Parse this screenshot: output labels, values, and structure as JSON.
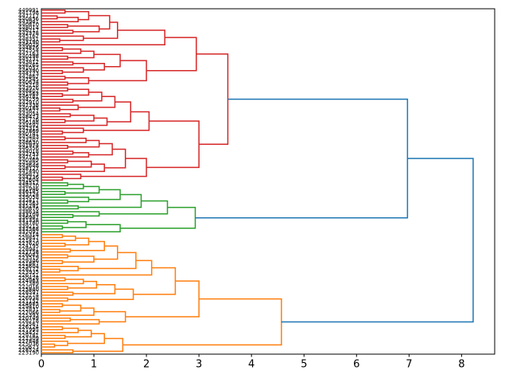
{
  "figure": {
    "background": "#ffffff",
    "frame_color": "#000000"
  },
  "chart_data": {
    "type": "dendrogram",
    "orientation": "horizontal-root-right",
    "title": "",
    "xlabel": "",
    "ylabel": "",
    "grid": false,
    "legend": null,
    "x_axis": {
      "min": 0,
      "max": 8.63,
      "ticks": [
        "0",
        "1",
        "2",
        "3",
        "4",
        "5",
        "6",
        "7",
        "8"
      ]
    },
    "link_colors": {
      "above_threshold": "#1f77b4",
      "cluster_top": "#d62728",
      "cluster_middle": "#2ca02c",
      "cluster_bottom": "#ff7f0e"
    },
    "clusters": [
      {
        "name": "cluster-top-red",
        "color": "#d62728",
        "leaf_count": 60,
        "root_height": 3.55
      },
      {
        "name": "cluster-middle-green",
        "color": "#2ca02c",
        "leaf_count": 18,
        "root_height": 2.93
      },
      {
        "name": "cluster-bottom-orange",
        "color": "#ff7f0e",
        "leaf_count": 42,
        "root_height": 4.57
      }
    ],
    "root_merges": [
      {
        "joins": "red+green",
        "height": 6.97,
        "color": "#1f77b4"
      },
      {
        "joins": "(red+green)+orange",
        "height": 8.22,
        "color": "#1f77b4"
      }
    ],
    "leaf_labels": [
      "449991",
      "441798",
      "447717",
      "440856",
      "443941",
      "440810",
      "448014",
      "446217",
      "442378",
      "445162",
      "448351",
      "443190",
      "446029",
      "444876",
      "442554",
      "447163",
      "440298",
      "445731",
      "443812",
      "448265",
      "441057",
      "446390",
      "444123",
      "442867",
      "447545",
      "440634",
      "445218",
      "443976",
      "448402",
      "441563",
      "446781",
      "444259",
      "442910",
      "447338",
      "440185",
      "445627",
      "443054",
      "448473",
      "441726",
      "446148",
      "444592",
      "442315",
      "447869",
      "440741",
      "445483",
      "443207",
      "448630",
      "441974",
      "446356",
      "444018",
      "442753",
      "447521",
      "440369",
      "445895",
      "443648",
      "448127",
      "441490",
      "446873",
      "444236",
      "442604",
      "334512",
      "338270",
      "331946",
      "336185",
      "333724",
      "339058",
      "332417",
      "337563",
      "335291",
      "330876",
      "338634",
      "333109",
      "336947",
      "331358",
      "334780",
      "339215",
      "332568",
      "337092",
      "226314",
      "229857",
      "221473",
      "227620",
      "224195",
      "228941",
      "222758",
      "226083",
      "223519",
      "229346",
      "221867",
      "225604",
      "228172",
      "223935",
      "226751",
      "220428",
      "224963",
      "227389",
      "222016",
      "225840",
      "228597",
      "223274",
      "226938",
      "221152",
      "224685",
      "229410",
      "222831",
      "227066",
      "225393",
      "220749",
      "228218",
      "223567",
      "226124",
      "221995",
      "224452",
      "229781",
      "222309",
      "227848",
      "225036",
      "220673",
      "228524",
      "223190"
    ],
    "tree": {
      "h": 8.22,
      "color": "#1f77b4",
      "children": [
        {
          "h": 6.97,
          "color": "#1f77b4",
          "children": [
            {
              "h": 3.55,
              "color": "#d62728",
              "children": [
                [
                  2.95,
                  [
                    2.35,
                    [
                      1.45,
                      [
                        1.3,
                        [
                          0.9,
                          [
                            0.45,
                            0,
                            1
                          ],
                          [
                            0.7,
                            [
                              0.3,
                              2,
                              3
                            ],
                            4
                          ]
                        ],
                        [
                          1.1,
                          [
                            0.5,
                            5,
                            6
                          ],
                          [
                            0.6,
                            7,
                            8
                          ]
                        ]
                      ],
                      [
                        0.8,
                        9,
                        [
                          0.35,
                          10,
                          11
                        ]
                      ]
                    ],
                    12
                  ],
                  [
                    2.0,
                    [
                      1.5,
                      [
                        1.0,
                        [
                          0.75,
                          [
                            0.4,
                            13,
                            14
                          ],
                          15
                        ],
                        [
                          0.5,
                          16,
                          17
                        ]
                      ],
                      [
                        1.2,
                        [
                          0.6,
                          18,
                          19
                        ],
                        [
                          0.8,
                          20,
                          [
                            0.4,
                            21,
                            22
                          ]
                        ]
                      ]
                    ],
                    [
                      0.9,
                      [
                        0.45,
                        23,
                        24
                      ],
                      [
                        0.5,
                        25,
                        26
                      ]
                    ]
                  ]
                ],
                [
                  3.0,
                  [
                    2.05,
                    [
                      1.7,
                      [
                        1.4,
                        [
                          1.15,
                          [
                            0.9,
                            [
                              0.5,
                              27,
                              28
                            ],
                            [
                              0.4,
                              29,
                              30
                            ]
                          ],
                          [
                            0.6,
                            31,
                            32
                          ]
                        ],
                        [
                          0.7,
                          33,
                          [
                            0.35,
                            34,
                            35
                          ]
                        ]
                      ],
                      [
                        1.25,
                        [
                          1.0,
                          [
                            0.55,
                            36,
                            37
                          ],
                          [
                            0.45,
                            38,
                            39
                          ]
                        ],
                        40
                      ]
                    ],
                    [
                      0.8,
                      41,
                      [
                        0.4,
                        42,
                        43
                      ]
                    ]
                  ],
                  [
                    2.0,
                    [
                      1.6,
                      [
                        1.35,
                        [
                          1.1,
                          [
                            0.85,
                            [
                              0.45,
                              44,
                              45
                            ],
                            46
                          ],
                          [
                            0.5,
                            47,
                            48
                          ]
                        ],
                        [
                          0.9,
                          [
                            0.6,
                            49,
                            50
                          ],
                          51
                        ]
                      ],
                      [
                        1.2,
                        [
                          0.95,
                          [
                            0.5,
                            52,
                            53
                          ],
                          [
                            0.45,
                            54,
                            55
                          ]
                        ],
                        56
                      ]
                    ],
                    [
                      0.75,
                      57,
                      [
                        0.4,
                        58,
                        59
                      ]
                    ]
                  ]
                ]
              ]
            },
            {
              "h": 2.93,
              "color": "#2ca02c",
              "children": [
                [
                  2.4,
                  [
                    1.9,
                    [
                      1.5,
                      [
                        1.1,
                        [
                          0.8,
                          [
                            0.5,
                            60,
                            61
                          ],
                          62
                        ],
                        [
                          0.45,
                          63,
                          64
                        ]
                      ],
                      [
                        0.9,
                        65,
                        [
                          0.5,
                          66,
                          67
                        ]
                      ]
                    ],
                    [
                      0.7,
                      68,
                      69
                    ]
                  ],
                  [
                    1.1,
                    70,
                    [
                      0.6,
                      71,
                      72
                    ]
                  ]
                ],
                [
                  1.5,
                  [
                    0.85,
                    [
                      0.5,
                      73,
                      74
                    ],
                    [
                      0.4,
                      75,
                      76
                    ]
                  ],
                  77
                ]
              ]
            }
          ]
        },
        {
          "h": 4.57,
          "color": "#ff7f0e",
          "children": [
            [
              3.0,
              [
                2.55,
                [
                  2.1,
                  [
                    1.8,
                    [
                      1.45,
                      [
                        1.2,
                        [
                          0.9,
                          [
                            0.65,
                            [
                              0.4,
                              78,
                              79
                            ],
                            80
                          ],
                          [
                            0.45,
                            81,
                            82
                          ]
                        ],
                        [
                          0.55,
                          83,
                          84
                        ]
                      ],
                      [
                        1.0,
                        [
                          0.5,
                          85,
                          86
                        ],
                        [
                          0.4,
                          87,
                          88
                        ]
                      ]
                    ],
                    [
                      0.7,
                      89,
                      [
                        0.35,
                        90,
                        91
                      ]
                    ]
                  ],
                  92
                ],
                [
                  1.75,
                  [
                    1.4,
                    [
                      1.05,
                      [
                        0.8,
                        [
                          0.45,
                          93,
                          94
                        ],
                        95
                      ],
                      [
                        0.5,
                        96,
                        97
                      ]
                    ],
                    [
                      0.6,
                      98,
                      99
                    ]
                  ],
                  [
                    0.5,
                    100,
                    101
                  ]
                ]
              ],
              [
                1.6,
                [
                  1.0,
                  [
                    0.75,
                    [
                      0.4,
                      102,
                      103
                    ],
                    [
                      0.35,
                      104,
                      105
                    ]
                  ],
                  106
                ],
                [
                  1.1,
                  [
                    0.55,
                    107,
                    108
                  ],
                  109
                ]
              ]
            ],
            [
              1.55,
              [
                1.2,
                [
                  0.95,
                  [
                    0.7,
                    [
                      0.4,
                      110,
                      111
                    ],
                    112
                  ],
                  [
                    0.45,
                    113,
                    114
                  ]
                ],
                [
                  0.5,
                  115,
                  [
                    0.25,
                    116,
                    117
                  ]
                ]
              ],
              [
                0.6,
                118,
                119
              ]
            ]
          ]
        }
      ]
    }
  }
}
